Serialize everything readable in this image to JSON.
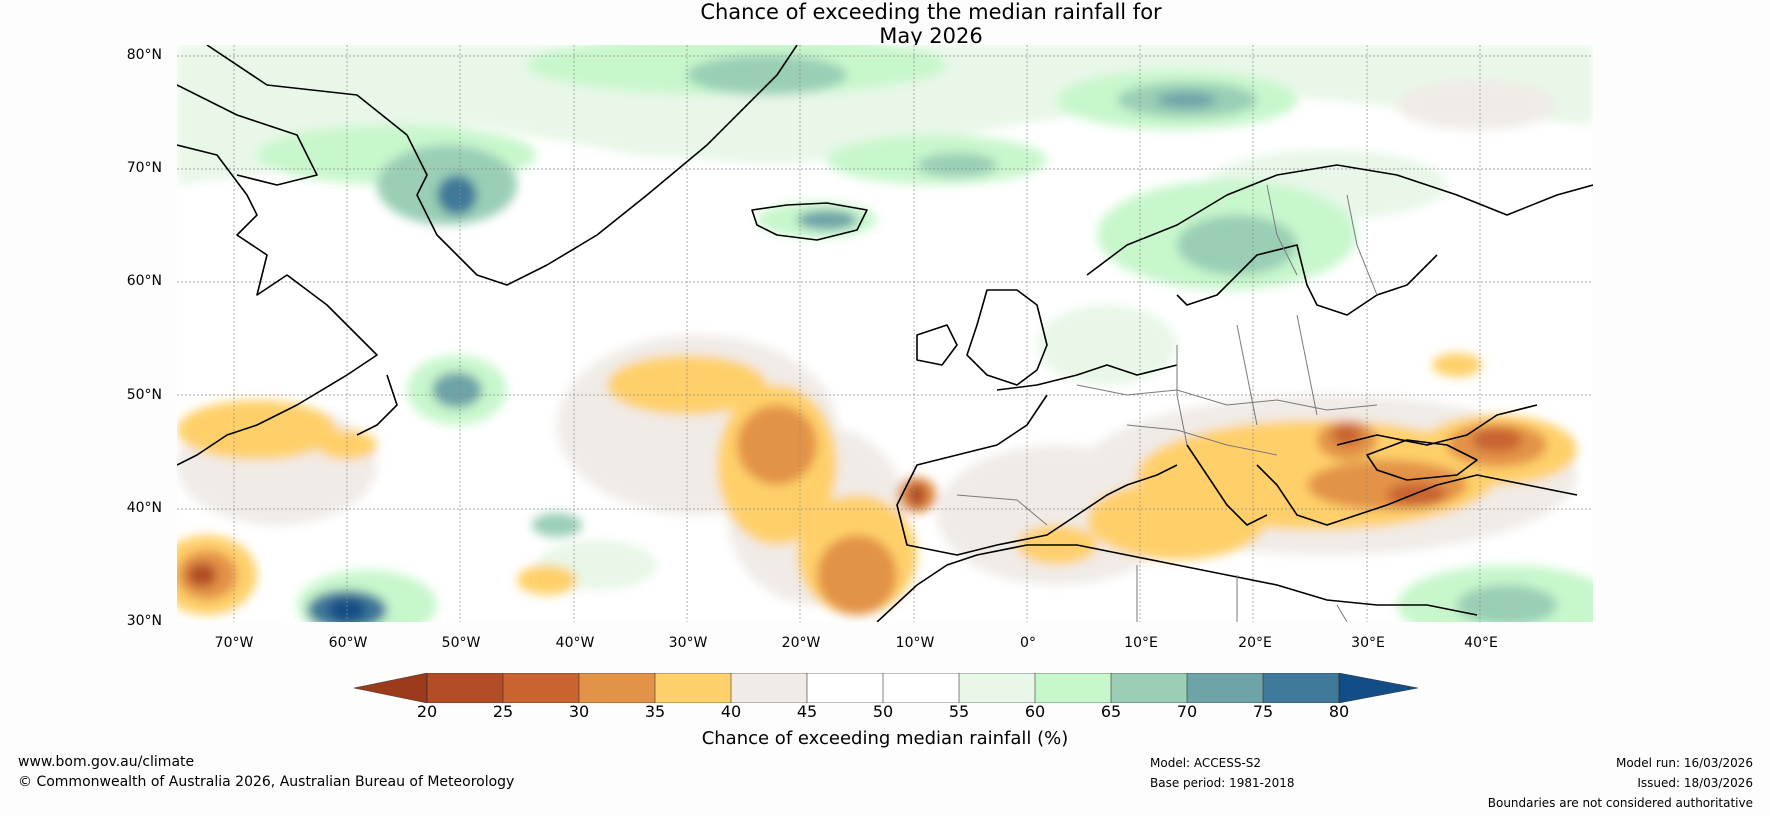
{
  "title": {
    "line1": "Chance of exceeding the median rainfall for",
    "line2": "May 2026"
  },
  "map": {
    "lat_labels": [
      "80°N",
      "70°N",
      "60°N",
      "50°N",
      "40°N",
      "30°N"
    ],
    "lon_labels": [
      "70°W",
      "60°W",
      "50°W",
      "40°W",
      "30°W",
      "20°W",
      "10°W",
      "0°",
      "10°E",
      "20°E",
      "30°E",
      "40°E"
    ],
    "lat_range": [
      30,
      81
    ],
    "lon_range": [
      -75,
      50
    ]
  },
  "colorbar": {
    "ticks": [
      "20",
      "25",
      "30",
      "35",
      "40",
      "45",
      "50",
      "55",
      "60",
      "65",
      "70",
      "75",
      "80"
    ],
    "colors": {
      "below20": "#9c3a1c",
      "b20_25": "#b24d28",
      "b25_30": "#c96430",
      "b30_35": "#e39347",
      "b35_40": "#ffd06b",
      "b40_45": "#f0ebe7",
      "b45_50": "#ffffff",
      "b50_55": "#ffffff",
      "b55_60": "#e8f7e8",
      "b60_65": "#c8f7cc",
      "b65_70": "#9acfb6",
      "b70_75": "#6ea3a8",
      "b75_80": "#40799a",
      "above80": "#134d85"
    },
    "title": "Chance of exceeding median rainfall (%)"
  },
  "footer": {
    "website": "www.bom.gov.au/climate",
    "copyright": "© Commonwealth of Australia 2026, Australian Bureau of Meteorology",
    "model": "Model: ACCESS-S2",
    "base_period": "Base period: 1981-2018",
    "model_run": "Model run: 16/03/2026",
    "issued": "Issued: 18/03/2026",
    "disclaimer": "Boundaries are not considered authoritative"
  }
}
